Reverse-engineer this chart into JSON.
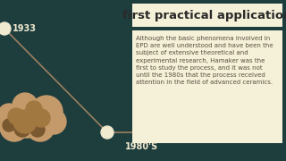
{
  "bg_color": "#1e3d3d",
  "title_box_color": "#f5f0d8",
  "body_box_color": "#f5f0d8",
  "title_text": "first practical application",
  "title_fontsize": 9.5,
  "title_color": "#2a2a2a",
  "year_1933": "1933",
  "year_1980s": "1980'S",
  "year_color": "#f0ead0",
  "year_fontsize": 7,
  "body_text": "Although the basic phenomena involved in\nEPD are well understood and have been the\nsubject of extensive theoretical and\nexperimental research, Hamaker was the\nfirst to study the process, and it was not\nuntil the 1980s that the process received\nattention in the field of advanced ceramics.",
  "body_fontsize": 5.0,
  "body_color": "#5a5040",
  "line_color": "#9a8060",
  "circle_color": "#f0ead0",
  "cloud_color_main": "#c49a6a",
  "cloud_color_dark": "#a07840",
  "cloud_color_shadow": "#7a5830"
}
